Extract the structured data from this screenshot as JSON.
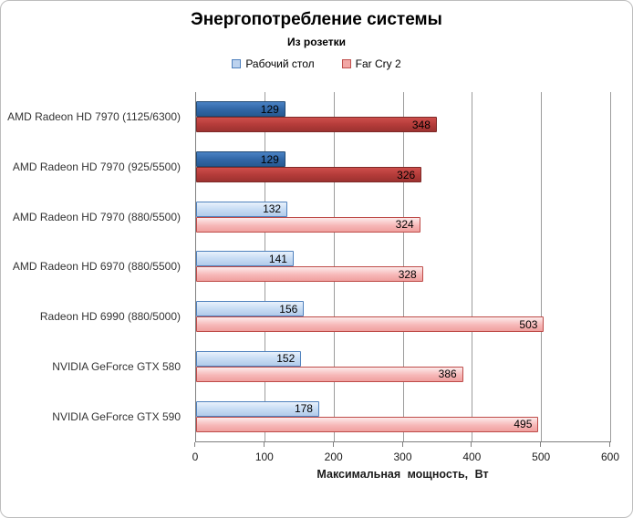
{
  "title": "Энергопотребление системы",
  "subtitle": "Из розетки",
  "legend": [
    {
      "label": "Рабочий стол",
      "fill": "#BCD2EE",
      "border": "#4F81BD"
    },
    {
      "label": "Far Cry 2",
      "fill": "#F2A7A5",
      "border": "#C0504D"
    }
  ],
  "chart_data": {
    "type": "bar",
    "orientation": "horizontal",
    "title": "Энергопотребление системы",
    "subtitle": "Из розетки",
    "categories": [
      "AMD Radeon HD 7970 (1125/6300)",
      "AMD Radeon HD 7970 (925/5500)",
      "AMD Radeon HD 7970 (880/5500)",
      "AMD Radeon HD 6970 (880/5500)",
      "Radeon HD 6990 (880/5000)",
      "NVIDIA GeForce GTX 580",
      "NVIDIA GeForce GTX 590"
    ],
    "series": [
      {
        "name": "Рабочий стол",
        "color": "#4F81BD",
        "values": [
          129,
          129,
          132,
          141,
          156,
          152,
          178
        ]
      },
      {
        "name": "Far Cry 2",
        "color": "#C0504D",
        "values": [
          348,
          326,
          324,
          328,
          503,
          386,
          495
        ]
      }
    ],
    "highlighted_categories": [
      0,
      1
    ],
    "highlight_colors": {
      "blue": "#3268A8",
      "red": "#B53C3A"
    },
    "xlabel": "Максимальная  мощность, Вт",
    "xlim": [
      0,
      600
    ],
    "xticks": [
      0,
      100,
      200,
      300,
      400,
      500,
      600
    ],
    "grid": "vertical",
    "legend_position": "top-center",
    "value_labels": "inside-end"
  }
}
